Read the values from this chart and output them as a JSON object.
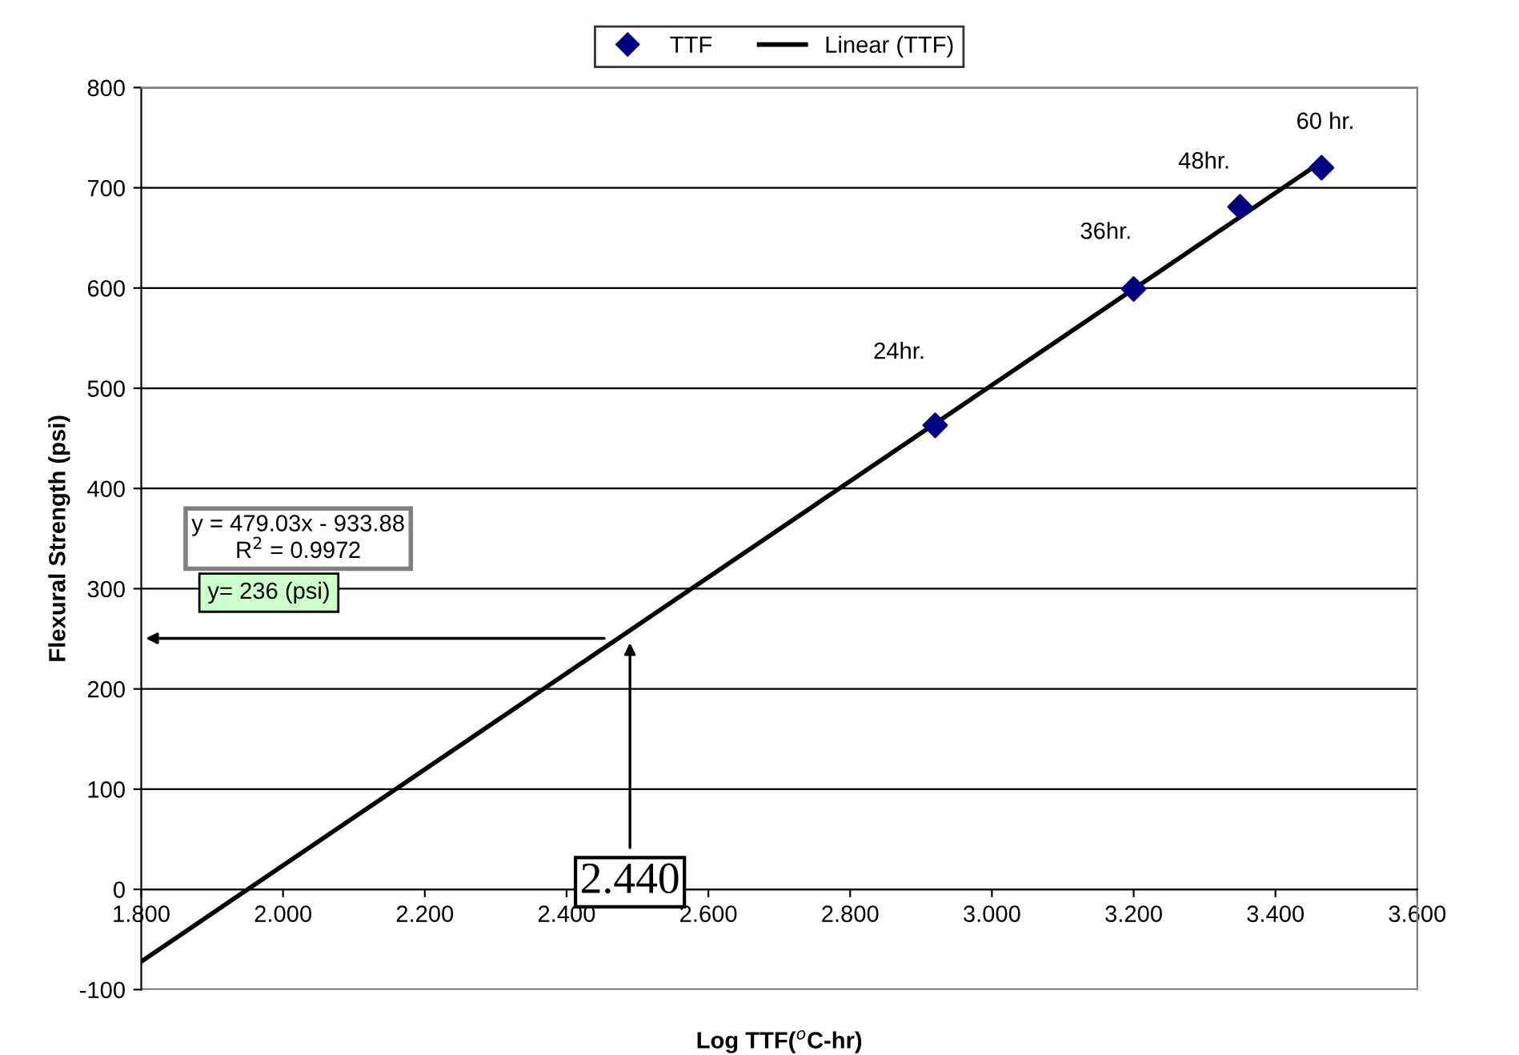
{
  "chart_data": {
    "type": "scatter",
    "xlabel": "Log TTF($^{o}$C-hr)",
    "ylabel": "Flexural Strength (psi)",
    "series": [
      {
        "name": "TTF",
        "color": "#000080",
        "marker": "diamond",
        "x": [
          2.92,
          3.2,
          3.35,
          3.465
        ],
        "values": [
          463,
          599,
          681,
          720
        ]
      },
      {
        "name": "Linear (TTF)",
        "type": "line",
        "color": "#000000",
        "marker": "none",
        "line_style": "solid",
        "x": [
          1.8,
          3.465
        ],
        "values": [
          -72,
          726
        ]
      }
    ],
    "xlim": [
      1.8,
      3.6
    ],
    "ylim": [
      -100,
      800
    ],
    "xticks": [
      {
        "value": 1.8,
        "label": "1.800"
      },
      {
        "value": 2.0,
        "label": "2.000"
      },
      {
        "value": 2.2,
        "label": "2.200"
      },
      {
        "value": 2.4,
        "label": "2.400"
      },
      {
        "value": 2.6,
        "label": "2.600"
      },
      {
        "value": 2.8,
        "label": "2.800"
      },
      {
        "value": 3.0,
        "label": "3.000"
      },
      {
        "value": 3.2,
        "label": "3.200"
      },
      {
        "value": 3.4,
        "label": "3.400"
      },
      {
        "value": 3.6,
        "label": "3.600"
      }
    ],
    "yticks": [
      -100,
      0,
      100,
      200,
      300,
      400,
      500,
      600,
      700,
      800
    ],
    "grid": "y",
    "legend": "top",
    "annotations": [
      "24hr.",
      "36hr.",
      "48hr.",
      "60 hr.",
      "y = 479.03x - 933.88\nR$^{2}$ = 0.9972",
      "y= 236 (psi)",
      "2.440"
    ]
  }
}
